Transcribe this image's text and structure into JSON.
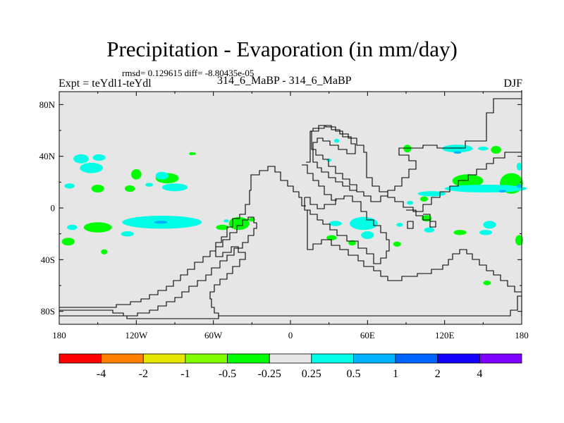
{
  "title": "Precipitation - Evaporation (in mm/day)",
  "stats": "rmsd= 0.129615 diff= -8.80435e-05",
  "expt_label": "Expt = teYdl1-teYdl",
  "subtitle": "314_6_MaBP - 314_6_MaBP",
  "season": "DJF",
  "map": {
    "background_color": "#e6e6e6",
    "lat_ticks": [
      {
        "value": 80,
        "label": "80N"
      },
      {
        "value": 40,
        "label": "40N"
      },
      {
        "value": 0,
        "label": "0"
      },
      {
        "value": -40,
        "label": "40S"
      },
      {
        "value": -80,
        "label": "80S"
      }
    ],
    "lon_ticks": [
      {
        "value": -180,
        "label": "180"
      },
      {
        "value": -120,
        "label": "120W"
      },
      {
        "value": -60,
        "label": "60W"
      },
      {
        "value": 0,
        "label": "0"
      },
      {
        "value": 60,
        "label": "60E"
      },
      {
        "value": 120,
        "label": "120E"
      },
      {
        "value": 180,
        "label": "180"
      }
    ],
    "anomalies": [
      {
        "lon": -163,
        "lat": 38,
        "rx": 6,
        "ry": 3.5,
        "level": "pos_0.25"
      },
      {
        "lon": -155,
        "lat": 31,
        "rx": 9,
        "ry": 4,
        "level": "pos_0.25"
      },
      {
        "lon": -149,
        "lat": 39,
        "rx": 5,
        "ry": 2.5,
        "level": "pos_0.25"
      },
      {
        "lon": -172,
        "lat": 17,
        "rx": 4,
        "ry": 2,
        "level": "pos_0.25"
      },
      {
        "lon": -120,
        "lat": 26,
        "rx": 4,
        "ry": 4,
        "level": "neg_0.25"
      },
      {
        "lon": -150,
        "lat": 15,
        "rx": 5,
        "ry": 3,
        "level": "neg_0.25"
      },
      {
        "lon": -125,
        "lat": 15,
        "rx": 4,
        "ry": 2.5,
        "level": "neg_0.25"
      },
      {
        "lon": -96,
        "lat": 23,
        "rx": 9,
        "ry": 4,
        "level": "neg_0.25"
      },
      {
        "lon": -90,
        "lat": 16,
        "rx": 10,
        "ry": 3,
        "level": "pos_0.25"
      },
      {
        "lon": -100,
        "lat": 25,
        "rx": 5,
        "ry": 3,
        "level": "pos_0.25"
      },
      {
        "lon": -110,
        "lat": 18,
        "rx": 3,
        "ry": 1.5,
        "level": "pos_0.25"
      },
      {
        "lon": -77,
        "lat": 42,
        "rx": 2,
        "ry": 1.2,
        "level": "neg_0.25"
      },
      {
        "lon": -100,
        "lat": -11,
        "rx": 31,
        "ry": 5,
        "level": "pos_0.25"
      },
      {
        "lon": -101,
        "lat": -11,
        "rx": 5,
        "ry": 1.2,
        "level": "pos_0.5"
      },
      {
        "lon": -150,
        "lat": -15,
        "rx": 11,
        "ry": 4,
        "level": "neg_0.25"
      },
      {
        "lon": -170,
        "lat": -15,
        "rx": 4,
        "ry": 2,
        "level": "pos_0.25"
      },
      {
        "lon": -127,
        "lat": -20,
        "rx": 5,
        "ry": 2,
        "level": "pos_0.25"
      },
      {
        "lon": -173,
        "lat": -26,
        "rx": 5,
        "ry": 3,
        "level": "neg_0.25"
      },
      {
        "lon": -145,
        "lat": -34,
        "rx": 2.5,
        "ry": 2,
        "level": "neg_0.25"
      },
      {
        "lon": -40,
        "lat": -12,
        "rx": 8,
        "ry": 5,
        "level": "neg_0.25"
      },
      {
        "lon": -53,
        "lat": -15,
        "rx": 5,
        "ry": 2,
        "level": "neg_0.25"
      },
      {
        "lon": -30,
        "lat": -9,
        "rx": 2.5,
        "ry": 1.5,
        "level": "neg_0.25"
      },
      {
        "lon": -50,
        "lat": -10,
        "rx": 2,
        "ry": 1.2,
        "level": "pos_0.25"
      },
      {
        "lon": 57,
        "lat": -12,
        "rx": 11,
        "ry": 5,
        "level": "pos_0.25"
      },
      {
        "lon": 60,
        "lat": -21,
        "rx": 5,
        "ry": 3,
        "level": "pos_0.25"
      },
      {
        "lon": 35,
        "lat": -12,
        "rx": 5,
        "ry": 2,
        "level": "pos_0.25"
      },
      {
        "lon": 32,
        "lat": -23,
        "rx": 4,
        "ry": 2,
        "level": "neg_0.25"
      },
      {
        "lon": 48,
        "lat": -27,
        "rx": 3,
        "ry": 2,
        "level": "neg_0.25"
      },
      {
        "lon": 85,
        "lat": -13,
        "rx": 2.5,
        "ry": 1.5,
        "level": "pos_0.25"
      },
      {
        "lon": 83,
        "lat": -28,
        "rx": 3,
        "ry": 2,
        "level": "neg_0.25"
      },
      {
        "lon": 106,
        "lat": -8,
        "rx": 4,
        "ry": 2.5,
        "level": "neg_0.25"
      },
      {
        "lon": 108,
        "lat": -17,
        "rx": 4,
        "ry": 2,
        "level": "pos_0.25"
      },
      {
        "lon": 132,
        "lat": -19,
        "rx": 5,
        "ry": 2,
        "level": "neg_0.25"
      },
      {
        "lon": 155,
        "lat": -13,
        "rx": 5,
        "ry": 3,
        "level": "pos_0.25"
      },
      {
        "lon": 152,
        "lat": -19,
        "rx": 5,
        "ry": 2,
        "level": "pos_0.25"
      },
      {
        "lon": 178,
        "lat": -25,
        "rx": 3,
        "ry": 4,
        "level": "neg_0.25"
      },
      {
        "lon": 153,
        "lat": -58,
        "rx": 3,
        "ry": 1.8,
        "level": "neg_0.25"
      },
      {
        "lon": 130,
        "lat": 46,
        "rx": 12,
        "ry": 3,
        "level": "pos_0.25"
      },
      {
        "lon": 130,
        "lat": 43,
        "rx": 3,
        "ry": 1,
        "level": "pos_0.5"
      },
      {
        "lon": 138,
        "lat": 21,
        "rx": 12,
        "ry": 5,
        "level": "neg_0.25"
      },
      {
        "lon": 172,
        "lat": 19,
        "rx": 9,
        "ry": 8,
        "level": "neg_0.25"
      },
      {
        "lon": 152,
        "lat": 15,
        "rx": 32,
        "ry": 3,
        "level": "pos_0.25"
      },
      {
        "lon": 165,
        "lat": 13,
        "rx": 3,
        "ry": 1,
        "level": "pos_0.5"
      },
      {
        "lon": 110,
        "lat": 11,
        "rx": 11,
        "ry": 2,
        "level": "pos_0.25"
      },
      {
        "lon": 104,
        "lat": 7,
        "rx": 3,
        "ry": 2,
        "level": "neg_0.25"
      },
      {
        "lon": 93,
        "lat": 4,
        "rx": 2.5,
        "ry": 1.5,
        "level": "pos_0.25"
      },
      {
        "lon": 91,
        "lat": 46,
        "rx": 3,
        "ry": 3,
        "level": "neg_0.25"
      },
      {
        "lon": 160,
        "lat": 45,
        "rx": 4,
        "ry": 3,
        "level": "neg_0.25"
      },
      {
        "lon": 150,
        "lat": 46,
        "rx": 4,
        "ry": 1.5,
        "level": "pos_0.25"
      },
      {
        "lon": 178,
        "lat": 32,
        "rx": 2,
        "ry": 3,
        "level": "pos_0.25"
      },
      {
        "lon": 178,
        "lat": 17,
        "rx": 2,
        "ry": 1.5,
        "level": "pos_0.5"
      },
      {
        "lon": 36,
        "lat": 52,
        "rx": 2,
        "ry": 1.5,
        "level": "pos_0.25"
      },
      {
        "lon": 30,
        "lat": 37,
        "rx": 2,
        "ry": 1.2,
        "level": "pos_0.25"
      },
      {
        "lon": -75,
        "lat": 42,
        "rx": 1.5,
        "ry": 1,
        "level": "neg_0.25"
      }
    ]
  },
  "colorbar": {
    "colors": [
      "#ff0000",
      "#ff8000",
      "#e6e600",
      "#80ff00",
      "#00ff00",
      "#e6e6e6",
      "#00ffe6",
      "#00b3ff",
      "#0064ff",
      "#1400ff",
      "#8000ff"
    ],
    "labels": [
      "-4",
      "-2",
      "-1",
      "-0.5",
      "-0.25",
      "0.25",
      "0.5",
      "1",
      "2",
      "4"
    ]
  },
  "level_colors": {
    "pos_0.25": "#00ffe6",
    "pos_0.5": "#00b3ff",
    "neg_0.25": "#00ff00"
  },
  "coastline_color": "#000000"
}
